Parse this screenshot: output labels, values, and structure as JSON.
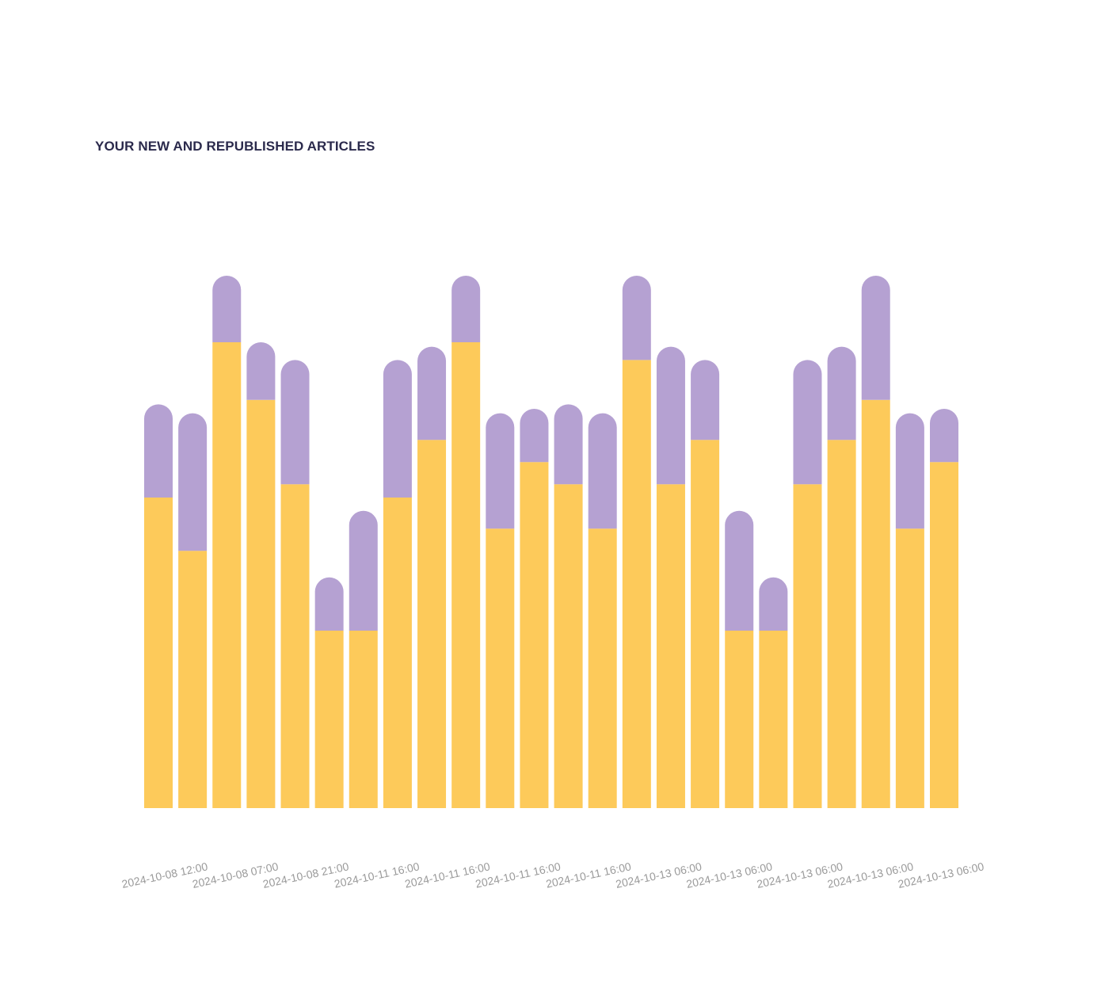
{
  "chart_data": {
    "type": "bar",
    "stacked": true,
    "title": "YOUR NEW AND REPUBLISHED ARTICLES",
    "xlabel": "",
    "ylabel": "",
    "ylim": [
      0,
      12
    ],
    "grid": false,
    "legend": "none",
    "tick_labels": [
      "2024-10-08 12:00",
      "2024-10-08 07:00",
      "2024-10-08 21:00",
      "2024-10-11 16:00",
      "2024-10-11 16:00",
      "2024-10-11 16:00",
      "2024-10-11 16:00",
      "2024-10-13 06:00",
      "2024-10-13 06:00",
      "2024-10-13 06:00",
      "2024-10-13 06:00",
      "2024-10-13 06:00"
    ],
    "series": [
      {
        "color": "#fdca5a",
        "values": [
          7,
          5.8,
          10.5,
          9.2,
          7.3,
          4,
          4,
          7,
          8.3,
          10.5,
          6.3,
          7.8,
          7.3,
          6.3,
          10.1,
          7.3,
          8.3,
          4,
          4,
          7.3,
          8.3,
          9.2,
          6.3,
          7.8
        ]
      },
      {
        "color": "#b5a1d2",
        "values": [
          2.1,
          3.1,
          1.5,
          1.3,
          2.8,
          1.2,
          2.7,
          3.1,
          2.1,
          1.5,
          2.6,
          1.2,
          1.8,
          2.6,
          1.9,
          3.1,
          1.8,
          2.7,
          1.2,
          2.8,
          2.1,
          2.8,
          2.6,
          1.2
        ]
      }
    ]
  }
}
